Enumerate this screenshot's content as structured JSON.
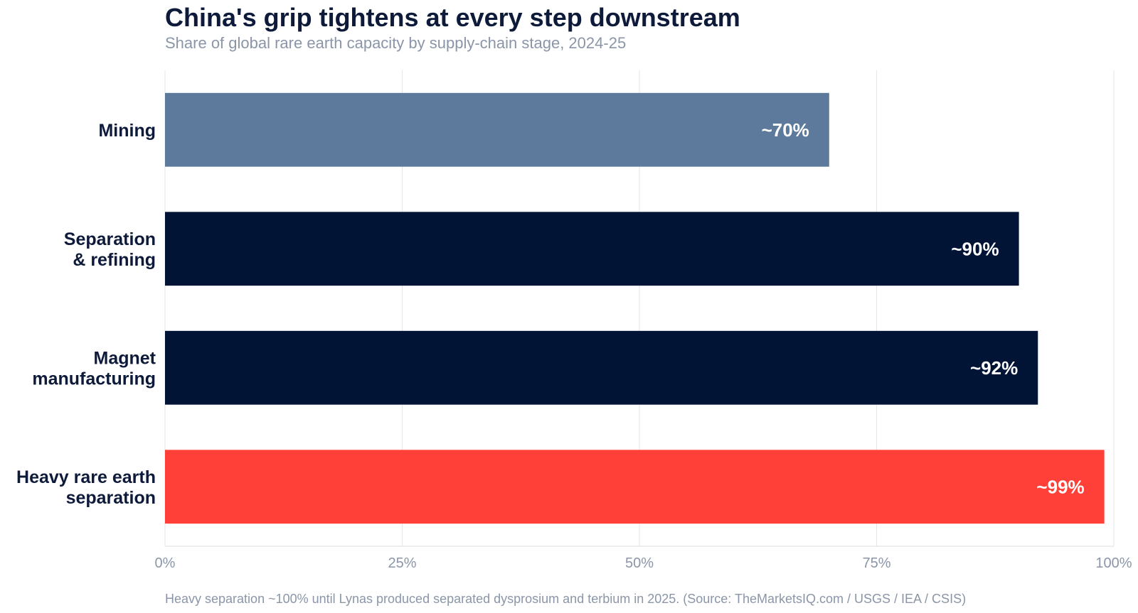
{
  "chart_data": {
    "type": "bar",
    "orientation": "horizontal",
    "title": "China's grip tightens at every step downstream",
    "subtitle": "Share of global rare earth capacity by supply-chain stage, 2024-25",
    "categories": [
      [
        "Mining"
      ],
      [
        "Separation",
        "& refining"
      ],
      [
        "Magnet",
        "manufacturing"
      ],
      [
        "Heavy rare earth",
        "separation"
      ]
    ],
    "values": [
      70,
      90,
      92,
      99
    ],
    "value_labels": [
      "~70%",
      "~90%",
      "~92%",
      "~99%"
    ],
    "colors": [
      "#5d7a9c",
      "#021436",
      "#021436",
      "#ff4038"
    ],
    "xlim": [
      0,
      100
    ],
    "x_ticks": [
      0,
      25,
      50,
      75,
      100
    ],
    "x_tick_labels": [
      "0%",
      "25%",
      "50%",
      "75%",
      "100%"
    ],
    "grid": true,
    "footnote": "Heavy separation ~100% until Lynas produced separated dysprosium and terbium in 2025.   (Source: TheMarketsIQ.com / USGS / IEA / CSIS)"
  }
}
